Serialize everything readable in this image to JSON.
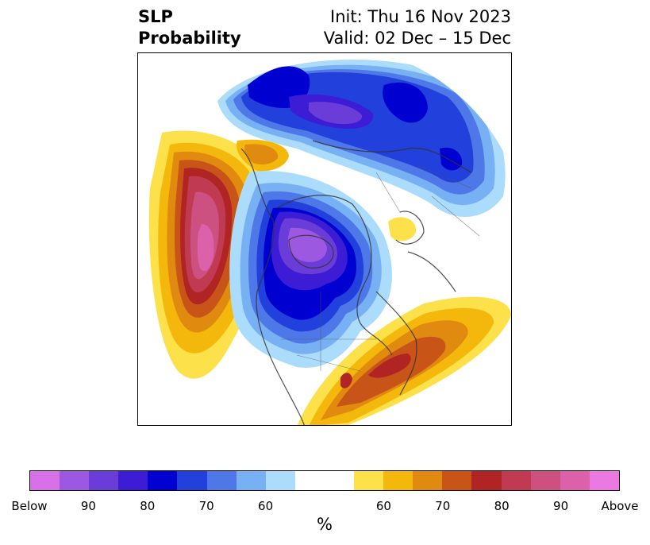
{
  "title": {
    "left_line1": "SLP",
    "left_line2": "Probability",
    "init": "Init: Thu 16 Nov 2023",
    "valid": "Valid: 02 Dec – 15 Dec"
  },
  "map": {
    "projection": "north-polar stereographic",
    "anomalies": [
      {
        "region": "north-pacific",
        "category": "above",
        "max_probability": "Above"
      },
      {
        "region": "canada-hudson-bay",
        "category": "below",
        "max_probability": "Below"
      },
      {
        "region": "arctic-siberia",
        "category": "below",
        "max_probability": "Below"
      },
      {
        "region": "eastern-us-atlantic",
        "category": "above",
        "max_probability": 80
      },
      {
        "region": "scandinavia-small",
        "category": "above",
        "max_probability": 60
      }
    ]
  },
  "colorbar": {
    "below_colors": [
      "#d870e8",
      "#9c58e0",
      "#6a3cd8",
      "#3c1cd4",
      "#0000d0",
      "#2240dc",
      "#4e78e8",
      "#78b0f4",
      "#acdcfc"
    ],
    "neutral_color": "#ffffff",
    "above_colors": [
      "#fce14a",
      "#f4b80c",
      "#e08a10",
      "#c85418",
      "#b02424",
      "#c03a52",
      "#cc5080",
      "#dc60aa",
      "#ec78e2"
    ],
    "tick_labels": [
      "Below",
      "90",
      "80",
      "70",
      "60",
      "60",
      "70",
      "80",
      "90",
      "Above"
    ],
    "units": "%"
  }
}
